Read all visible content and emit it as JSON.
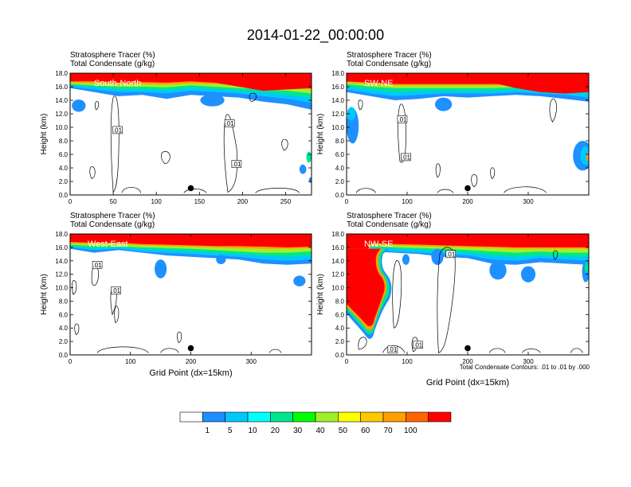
{
  "figure": {
    "title": "2014-01-22_00:00:00",
    "colorbar": {
      "labels": [
        "1",
        "5",
        "10",
        "20",
        "30",
        "40",
        "50",
        "60",
        "70",
        "100"
      ],
      "colors": [
        "#ffffff",
        "#1e90ff",
        "#00c8ff",
        "#00ffff",
        "#00e68c",
        "#00ff00",
        "#a0f028",
        "#ffff00",
        "#ffc800",
        "#ffa000",
        "#ff6400",
        "#ff0000"
      ]
    },
    "contour_note": "Total Condensate Contours: .01 to .01 by .000",
    "colors": {
      "text": "#000000",
      "contour": "#000000",
      "axis": "#000000"
    }
  },
  "chart_data": [
    {
      "type": "heatmap",
      "label_top": "Stratosphere Tracer   (%)",
      "label_bottom": "Total Condensate   (g/kg)",
      "region": "South-North",
      "ylabel": "Height (km)",
      "xlabel": "",
      "xlim": [
        0,
        280
      ],
      "ylim": [
        0,
        18
      ],
      "xticks": [
        0,
        50,
        100,
        150,
        200,
        250
      ],
      "yticks": [
        "0.0",
        "2.0",
        "4.0",
        "6.0",
        "8.0",
        "10.0",
        "12.0",
        "14.0",
        "16.0",
        "18.0"
      ],
      "marker": {
        "x": 140,
        "y": 1.0
      },
      "contour_labels": [
        {
          "text": ".01",
          "x": 55,
          "y": 9.6
        },
        {
          "text": ".01",
          "x": 185,
          "y": 10.6
        },
        {
          "text": ".01",
          "x": 193,
          "y": 4.6
        }
      ]
    },
    {
      "type": "heatmap",
      "label_top": "Stratosphere Tracer   (%)",
      "label_bottom": "Total Condensate   (g/kg)",
      "region": "SW-NE",
      "ylabel": "Height (km)",
      "xlabel": "",
      "xlim": [
        0,
        400
      ],
      "ylim": [
        0,
        18
      ],
      "xticks": [
        0,
        100,
        200,
        300
      ],
      "yticks": [
        "0.0",
        "2.0",
        "4.0",
        "6.0",
        "8.0",
        "10.0",
        "12.0",
        "14.0",
        "16.0",
        "18.0"
      ],
      "marker": {
        "x": 200,
        "y": 1.0
      },
      "contour_labels": [
        {
          "text": ".01",
          "x": 92,
          "y": 11.2
        },
        {
          "text": ".01",
          "x": 98,
          "y": 5.6
        }
      ]
    },
    {
      "type": "heatmap",
      "label_top": "Stratosphere Tracer   (%)",
      "label_bottom": "Total Condensate   (g/kg)",
      "region": "West-East",
      "ylabel": "Height (km)",
      "xlabel": "Grid Point (dx=15km)",
      "xlim": [
        0,
        400
      ],
      "ylim": [
        0,
        18
      ],
      "xticks": [
        0,
        100,
        200,
        300
      ],
      "yticks": [
        "0.0",
        "2.0",
        "4.0",
        "6.0",
        "8.0",
        "10.0",
        "12.0",
        "14.0",
        "16.0",
        "18.0"
      ],
      "marker": {
        "x": 200,
        "y": 1.0
      },
      "contour_labels": [
        {
          "text": ".01",
          "x": 45,
          "y": 13.4
        },
        {
          "text": ".01",
          "x": 76,
          "y": 9.6
        }
      ]
    },
    {
      "type": "heatmap",
      "label_top": "Stratosphere Tracer   (%)",
      "label_bottom": "Total Condensate   (g/kg)",
      "region": "NW-SE",
      "ylabel": "Height (km)",
      "xlabel": "Grid Point (dx=15km)",
      "xlim": [
        0,
        400
      ],
      "ylim": [
        0,
        18
      ],
      "xticks": [
        0,
        100,
        200,
        300
      ],
      "yticks": [
        "0.0",
        "2.0",
        "4.0",
        "6.0",
        "8.0",
        "10.0",
        "12.0",
        "14.0",
        "16.0",
        "18.0"
      ],
      "marker": {
        "x": 200,
        "y": 1.0
      },
      "contour_labels": [
        {
          "text": ".01",
          "x": 172,
          "y": 15.0
        },
        {
          "text": ".01",
          "x": 76,
          "y": 0.8
        },
        {
          "text": ".01",
          "x": 118,
          "y": 1.5
        }
      ]
    }
  ]
}
